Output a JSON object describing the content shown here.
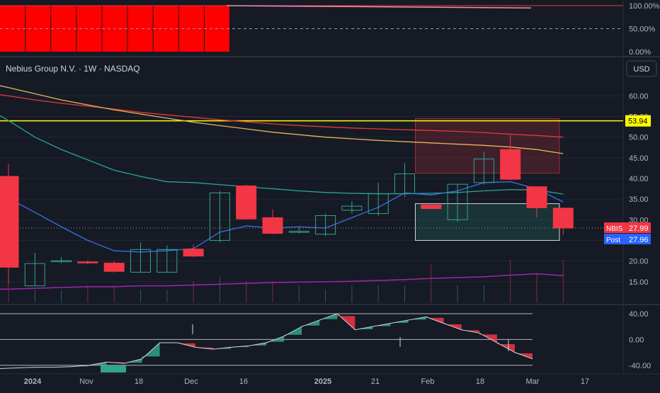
{
  "header": {
    "title": "Nebius Group N.V. · 1W · NASDAQ",
    "currency": "USD"
  },
  "colors": {
    "background": "#161a25",
    "grid": "#232735",
    "up": "#2fa58a",
    "down": "#f23645",
    "sma_fast": "#3b6ee8",
    "sma_mid": "#26a69a",
    "sma_slow_orange": "#e5b45c",
    "sma_slow_red": "#e53935",
    "volume_ma": "#9c27b0",
    "resistance": "#ffff00",
    "nbis_badge": "#f23645",
    "post_badge": "#2962ff"
  },
  "chart_data": [
    {
      "type": "bar",
      "panel": "top-indicator",
      "y_ticks": [
        "100.00%",
        "50.00%",
        "0.00%"
      ],
      "ylim": [
        0,
        100
      ],
      "bars_value": 100,
      "bars_count": 9,
      "line_value": 100
    },
    {
      "type": "candlestick",
      "panel": "price",
      "ylim": [
        10,
        64
      ],
      "y_ticks": [
        "60.00",
        "55.00",
        "50.00",
        "45.00",
        "40.00",
        "35.00",
        "30.00",
        "25.00",
        "20.00",
        "15.00"
      ],
      "candles": [
        {
          "o": 40.5,
          "h": 43.5,
          "l": 14.5,
          "c": 18.5
        },
        {
          "o": 14.0,
          "h": 22.0,
          "l": 14.0,
          "c": 19.4
        },
        {
          "o": 20.0,
          "h": 21.0,
          "l": 19.5,
          "c": 20.1
        },
        {
          "o": 19.8,
          "h": 20.2,
          "l": 19.2,
          "c": 19.6
        },
        {
          "o": 19.5,
          "h": 20.0,
          "l": 17.2,
          "c": 17.5
        },
        {
          "o": 17.3,
          "h": 24.5,
          "l": 17.2,
          "c": 22.8
        },
        {
          "o": 17.3,
          "h": 23.8,
          "l": 17.3,
          "c": 22.8
        },
        {
          "o": 22.9,
          "h": 24.0,
          "l": 21.0,
          "c": 21.2
        },
        {
          "o": 25.0,
          "h": 37.0,
          "l": 24.5,
          "c": 36.5
        },
        {
          "o": 38.2,
          "h": 38.5,
          "l": 30.0,
          "c": 30.2
        },
        {
          "o": 30.5,
          "h": 32.5,
          "l": 26.5,
          "c": 26.7
        },
        {
          "o": 27.0,
          "h": 28.2,
          "l": 26.7,
          "c": 27.2
        },
        {
          "o": 26.5,
          "h": 31.5,
          "l": 26.0,
          "c": 31.0
        },
        {
          "o": 32.3,
          "h": 34.5,
          "l": 31.5,
          "c": 33.3
        },
        {
          "o": 31.5,
          "h": 39.0,
          "l": 31.0,
          "c": 36.3
        },
        {
          "o": 36.3,
          "h": 43.7,
          "l": 35.5,
          "c": 41.1
        },
        {
          "o": 33.6,
          "h": 33.6,
          "l": 32.7,
          "c": 32.7
        },
        {
          "o": 30.0,
          "h": 38.6,
          "l": 29.5,
          "c": 38.6
        },
        {
          "o": 39.0,
          "h": 46.5,
          "l": 38.5,
          "c": 44.7
        },
        {
          "o": 47.0,
          "h": 50.5,
          "l": 39.5,
          "c": 39.8
        },
        {
          "o": 38.0,
          "h": 38.0,
          "l": 30.5,
          "c": 32.9
        },
        {
          "o": 32.8,
          "h": 33.0,
          "l": 26.3,
          "c": 27.99
        }
      ],
      "sma_fast": [
        35.2,
        31.8,
        28.3,
        25.0,
        22.5,
        22.2,
        22.5,
        23.0,
        27.0,
        28.5,
        28.0,
        28.3,
        28.0,
        30.5,
        33.0,
        36.5,
        36.0,
        37.0,
        39.0,
        39.2,
        37.5,
        34.3
      ],
      "sma_mid": [
        54.0,
        50.0,
        47.0,
        44.5,
        42.0,
        40.5,
        39.2,
        39.0,
        38.5,
        38.0,
        37.5,
        37.0,
        36.6,
        36.4,
        36.3,
        36.3,
        36.4,
        36.6,
        37.0,
        37.3,
        37.2,
        36.2
      ],
      "sma_slow_orange": [
        62.0,
        60.5,
        59.0,
        57.8,
        56.6,
        55.6,
        54.6,
        53.6,
        52.8,
        52.0,
        51.2,
        50.6,
        50.0,
        49.6,
        49.2,
        48.9,
        48.6,
        48.3,
        48.0,
        47.6,
        47.0,
        46.0
      ],
      "sma_slow_red": [
        60.0,
        59.0,
        58.2,
        57.5,
        56.8,
        56.0,
        55.4,
        54.8,
        54.2,
        53.7,
        53.2,
        52.8,
        52.5,
        52.2,
        52.0,
        51.8,
        51.6,
        51.4,
        51.1,
        50.7,
        50.4,
        50.0
      ],
      "volume_ma": [
        13.2,
        13.4,
        13.6,
        13.8,
        13.8,
        14.0,
        14.0,
        14.2,
        14.4,
        14.6,
        14.8,
        14.9,
        15.0,
        15.1,
        15.3,
        15.5,
        15.8,
        16.0,
        16.2,
        16.6,
        16.9,
        16.5
      ],
      "volume_spikes": [
        8,
        3,
        3,
        4,
        4,
        3,
        3,
        5,
        6,
        5,
        5,
        4,
        3,
        4,
        4,
        4,
        9,
        4,
        4,
        10,
        7,
        10
      ],
      "resistance": 53.94,
      "zones": [
        {
          "type": "supply",
          "from": 41.3,
          "to": 54.5
        },
        {
          "type": "demand",
          "from": 25.0,
          "to": 33.9
        }
      ],
      "labels": {
        "resistance": "53.94",
        "nbis_name": "NBIS",
        "nbis_price": "27.99",
        "post_name": "Post",
        "post_price": "27.96"
      }
    },
    {
      "type": "area",
      "panel": "oscillator",
      "ylim": [
        -50,
        52
      ],
      "y_ticks": [
        "40.00",
        "0.00",
        "-40.00"
      ],
      "upper": 40,
      "lower": -40,
      "values": [
        -45,
        -44,
        -43,
        -43,
        -42,
        -40,
        -35,
        -37,
        -30,
        -5,
        -5,
        -12,
        -15,
        -12,
        -10,
        -5,
        5,
        20,
        30,
        40,
        15,
        20,
        25,
        30,
        35,
        25,
        15,
        10,
        -5,
        -20,
        -30
      ]
    }
  ],
  "x_axis": {
    "labels": [
      "2024",
      "Nov",
      "18",
      "Dec",
      "16",
      "2025",
      "21",
      "Feb",
      "18",
      "Mar",
      "17"
    ]
  }
}
